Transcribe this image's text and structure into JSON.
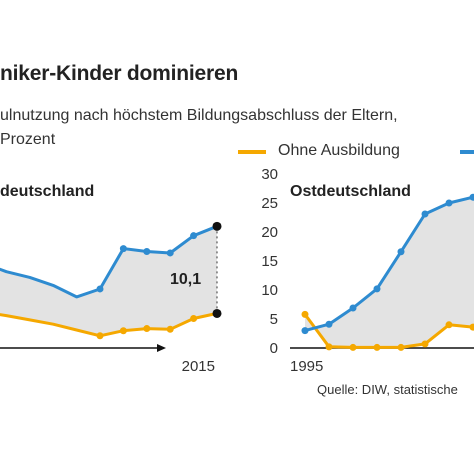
{
  "header": {
    "title": "niker-Kinder dominieren",
    "subtitle_line1": "ulnutzung nach höchstem Bildungsabschluss der Eltern,",
    "subtitle_line2": "Prozent"
  },
  "legend": {
    "items": [
      {
        "label": "Ohne Ausbildung",
        "color": "#f5a800"
      },
      {
        "label": "",
        "color": "#2e8bd0"
      }
    ]
  },
  "colors": {
    "orange": "#f5a800",
    "blue": "#2e8bd0",
    "gap_fill": "#e3e3e3",
    "axis": "#111111"
  },
  "source": "Quelle: DIW, statistische",
  "chart_data": [
    {
      "type": "line",
      "title": "deutschland",
      "x": [
        1995,
        1997,
        1999,
        2001,
        2003,
        2005,
        2007,
        2009,
        2011,
        2013,
        2015
      ],
      "x_tick_labels": [
        "2015"
      ],
      "series": [
        {
          "name": "Ohne Ausbildung",
          "values": [
            5.0,
            4.5,
            3.9,
            3.3,
            2.5,
            1.7,
            2.4,
            2.7,
            2.6,
            4.1,
            4.8
          ]
        },
        {
          "name": "",
          "values": [
            11.8,
            10.6,
            9.8,
            8.7,
            7.1,
            8.2,
            13.8,
            13.4,
            13.2,
            15.6,
            16.9
          ]
        }
      ],
      "annotations": [
        {
          "text": "10,1",
          "x": 2015
        }
      ]
    },
    {
      "type": "line",
      "title": "Ostdeutschland",
      "x": [
        1995,
        1997,
        1999,
        2001,
        2003,
        2005,
        2007,
        2009,
        2011
      ],
      "x_tick_labels": [
        "1995"
      ],
      "ylim": [
        0,
        30
      ],
      "y_ticks": [
        0,
        5,
        10,
        15,
        20,
        25,
        30
      ],
      "series": [
        {
          "name": "Ohne Ausbildung",
          "values": [
            5.8,
            0.2,
            0.1,
            0.1,
            0.1,
            0.7,
            4.0,
            3.6,
            3.5
          ]
        },
        {
          "name": "",
          "values": [
            3.0,
            4.1,
            6.9,
            10.2,
            16.6,
            23.1,
            25.0,
            26.0,
            27.0
          ]
        }
      ]
    }
  ]
}
